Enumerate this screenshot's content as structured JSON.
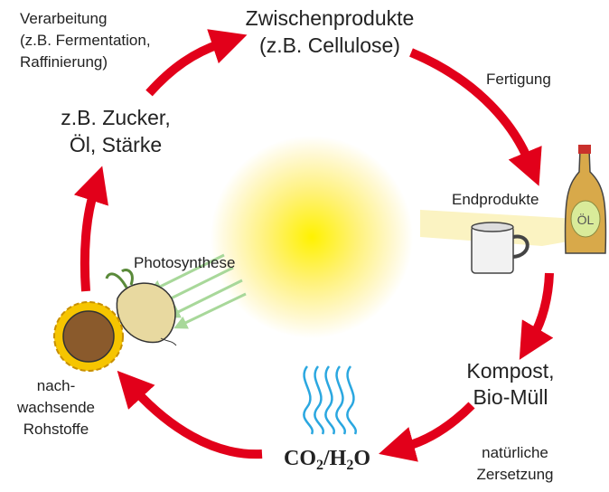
{
  "labels": {
    "verarbeitung": [
      "Verarbeitung",
      "(z.B. Fermentation,",
      "Raffinierung)"
    ],
    "zwischenprodukte": [
      "Zwischenprodukte",
      "(z.B. Cellulose)"
    ],
    "fertigung": [
      "Fertigung"
    ],
    "zucker": [
      "z.B. Zucker,",
      "Öl, Stärke"
    ],
    "endprodukte": [
      "Endprodukte"
    ],
    "bottle": [
      "ÖL"
    ],
    "photosynthese": [
      "Photosynthese"
    ],
    "kompost": [
      "Kompost,",
      "Bio-Müll"
    ],
    "rohstoffe": [
      "nach-",
      "wachsende",
      "Rohstoffe"
    ],
    "zersetzung": [
      "natürliche",
      "Zersetzung"
    ],
    "formula": [
      "CO",
      "2",
      "/H",
      "2",
      "O"
    ]
  }
}
